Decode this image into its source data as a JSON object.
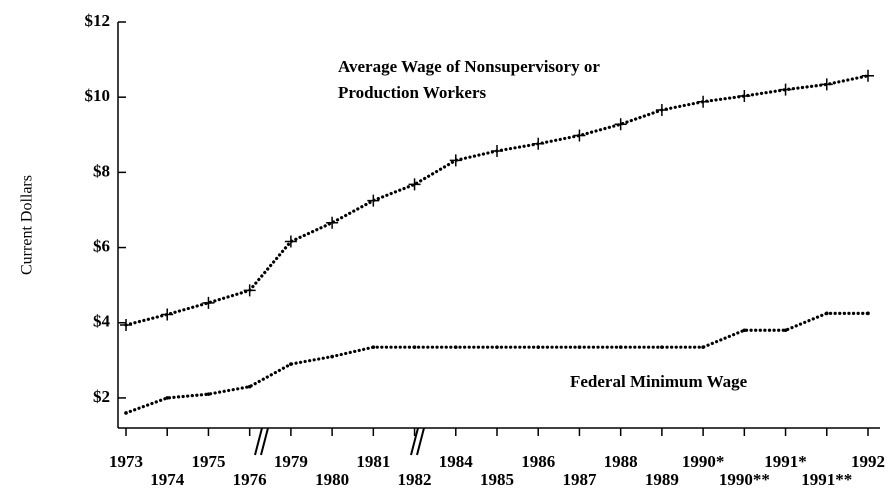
{
  "chart_data": {
    "type": "line",
    "y_label": "Current Dollars",
    "categories": [
      "1973",
      "1974",
      "1975",
      "1976",
      "1979",
      "1980",
      "1981",
      "1982",
      "1984",
      "1985",
      "1986",
      "1987",
      "1988",
      "1989",
      "1990*",
      "1990**",
      "1991*",
      "1991**",
      "1992"
    ],
    "series": [
      {
        "color": "#000000",
        "marker": "+",
        "values": [
          3.94,
          4.22,
          4.53,
          4.86,
          6.16,
          6.66,
          7.25,
          7.68,
          8.32,
          8.57,
          8.76,
          8.98,
          9.28,
          9.66,
          9.88,
          10.03,
          10.2,
          10.34,
          10.57
        ]
      },
      {
        "color": "#000000",
        "values": [
          1.6,
          2.0,
          2.1,
          2.3,
          2.9,
          3.1,
          3.35,
          3.35,
          3.35,
          3.35,
          3.35,
          3.35,
          3.35,
          3.35,
          3.35,
          3.8,
          3.8,
          4.25,
          4.25
        ]
      }
    ],
    "annotations": [
      "Average Wage of Nonsupervisory or",
      "Production Workers",
      "Federal Minimum Wage"
    ],
    "ylim": [
      1.2,
      12
    ],
    "yticks": [
      {
        "value": 2,
        "label": "$2"
      },
      {
        "value": 4,
        "label": "$4"
      },
      {
        "value": 6,
        "label": "$6"
      },
      {
        "value": 8,
        "label": "$8"
      },
      {
        "value": 10,
        "label": "$10"
      },
      {
        "value": 12,
        "label": "$12"
      }
    ]
  }
}
